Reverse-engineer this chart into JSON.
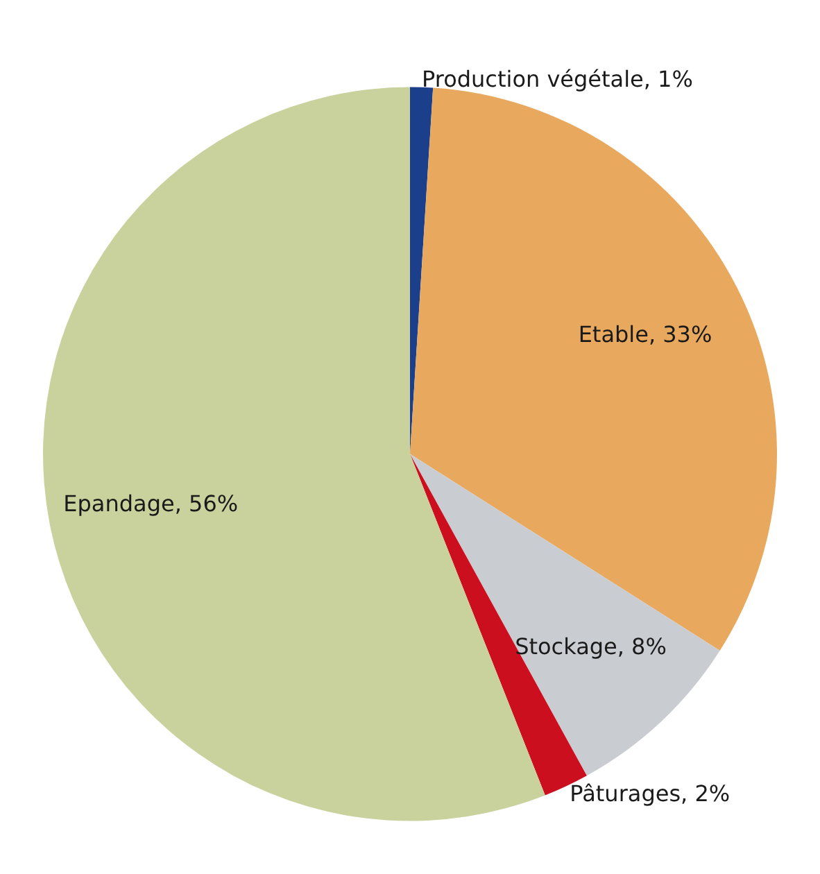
{
  "chart_data": {
    "type": "pie",
    "categories": [
      "Production végétale",
      "Etable",
      "Stockage",
      "Pâturages",
      "Epandage"
    ],
    "values": [
      1,
      33,
      8,
      2,
      56
    ],
    "colors": [
      "#1b3f8b",
      "#e8a95e",
      "#c9cdd1",
      "#cc0f1e",
      "#c9d29c"
    ],
    "value_labels": [
      "1%",
      "33%",
      "8%",
      "2%",
      "56%"
    ]
  }
}
